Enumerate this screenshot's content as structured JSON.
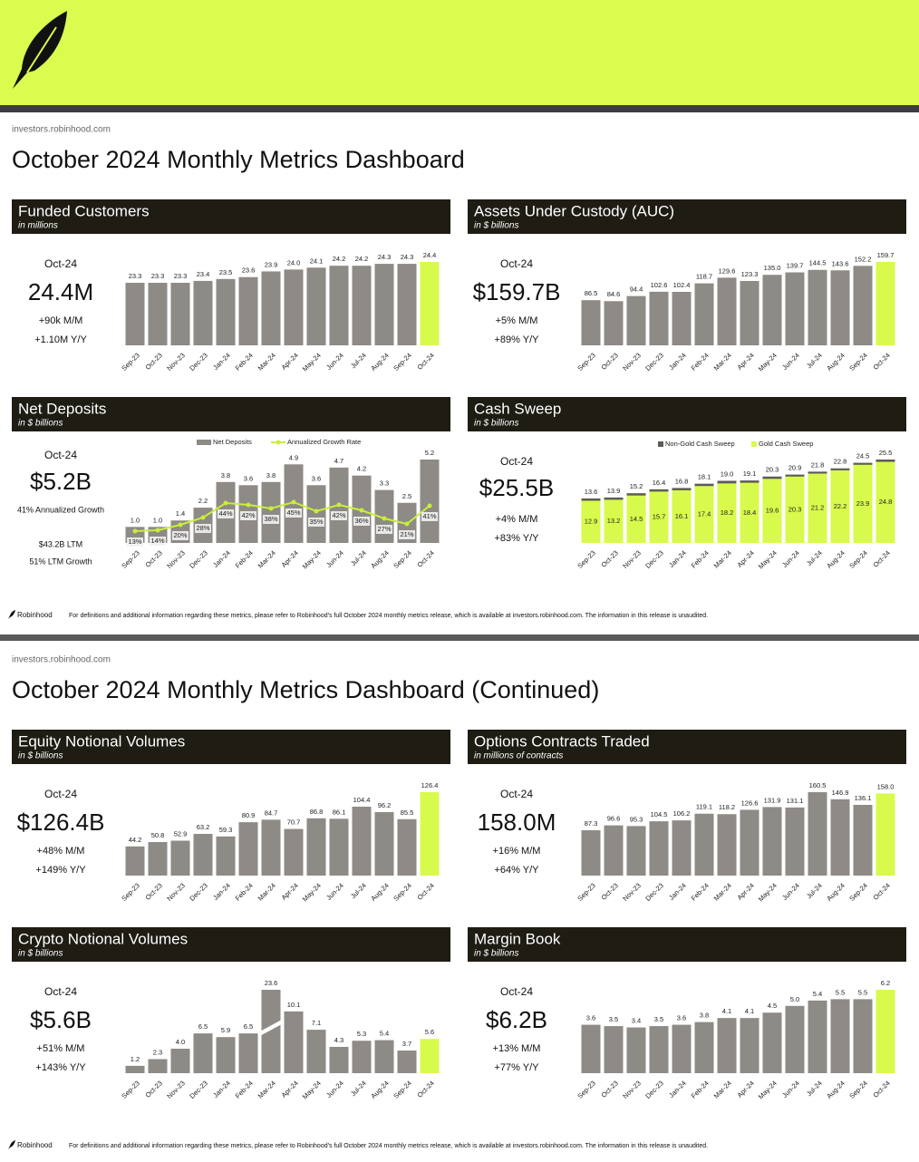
{
  "pages": [
    {
      "site": "investors.robinhood.com",
      "title": "October 2024 Monthly Metrics Dashboard",
      "footer_brand": "Robinhood",
      "footer_note": "For definitions and additional information regarding these metrics, please refer to Robinhood's full October 2024 monthly metrics release, which is available at investors.robinhood.com. The information in this release is unaudited."
    },
    {
      "site": "investors.robinhood.com",
      "title": "October 2024 Monthly Metrics Dashboard (Continued)",
      "footer_brand": "Robinhood",
      "footer_note": "For definitions and additional information regarding these metrics, please refer to Robinhood's full October 2024 monthly metrics release, which is available at investors.robinhood.com. The information in this release is unaudited."
    }
  ],
  "chart_data": [
    {
      "type": "bar",
      "title": "Funded Customers",
      "subtitle": "in millions",
      "categories": [
        "Sep-23",
        "Oct-23",
        "Nov-23",
        "Dec-23",
        "Jan-24",
        "Feb-24",
        "Mar-24",
        "Apr-24",
        "May-24",
        "Jun-24",
        "Jul-24",
        "Aug-24",
        "Sep-24",
        "Oct-24"
      ],
      "values": [
        23.3,
        23.3,
        23.3,
        23.4,
        23.5,
        23.6,
        23.9,
        24.0,
        24.1,
        24.2,
        24.2,
        24.3,
        24.3,
        24.4
      ],
      "value_labels": [
        "23.3",
        "23.3",
        "23.3",
        "23.4",
        "23.5",
        "23.6",
        "23.9",
        "24.0",
        "24.1",
        "24.2",
        "24.2",
        "24.3",
        "24.3",
        "24.4"
      ],
      "color": "#8e8a86",
      "highlight": "Oct-24",
      "highlight_color": "#d8fa4c",
      "kpi": {
        "period": "Oct-24",
        "value": "24.4M",
        "notes": [
          "+90k M/M",
          "+1.10M Y/Y"
        ]
      }
    },
    {
      "type": "bar",
      "title": "Assets Under Custody (AUC)",
      "subtitle": "in $ billions",
      "categories": [
        "Sep-23",
        "Oct-23",
        "Nov-23",
        "Dec-23",
        "Jan-24",
        "Feb-24",
        "Mar-24",
        "Apr-24",
        "May-24",
        "Jun-24",
        "Jul-24",
        "Aug-24",
        "Sep-24",
        "Oct-24"
      ],
      "values": [
        86.5,
        84.6,
        94.4,
        102.6,
        102.4,
        118.7,
        129.6,
        123.3,
        135.0,
        139.7,
        144.5,
        143.6,
        152.2,
        159.7
      ],
      "value_labels": [
        "86.5",
        "84.6",
        "94.4",
        "102.6",
        "102.4",
        "118.7",
        "129.6",
        "123.3",
        "135.0",
        "139.7",
        "144.5",
        "143.6",
        "152.2",
        "159.7"
      ],
      "color": "#8e8a86",
      "highlight": "Oct-24",
      "highlight_color": "#d8fa4c",
      "kpi": {
        "period": "Oct-24",
        "value": "$159.7B",
        "notes": [
          "+5% M/M",
          "+89% Y/Y"
        ]
      }
    },
    {
      "type": "bar_line",
      "title": "Net Deposits",
      "subtitle": "in $ billions",
      "categories": [
        "Sep-23",
        "Oct-23",
        "Nov-23",
        "Dec-23",
        "Jan-24",
        "Feb-24",
        "Mar-24",
        "Apr-24",
        "May-24",
        "Jun-24",
        "Jul-24",
        "Aug-24",
        "Sep-24",
        "Oct-24"
      ],
      "series": [
        {
          "name": "Net Deposits",
          "color": "#8e8a86",
          "values": [
            1.0,
            1.0,
            1.4,
            2.2,
            3.8,
            3.6,
            3.8,
            4.9,
            3.6,
            4.7,
            4.2,
            3.3,
            2.5,
            5.2
          ],
          "value_labels": [
            "1.0",
            "1.0",
            "1.4",
            "2.2",
            "3.8",
            "3.6",
            "3.8",
            "4.9",
            "3.6",
            "4.7",
            "4.2",
            "3.3",
            "2.5",
            "5.2"
          ]
        },
        {
          "name": "Annualized Growth Rate",
          "color": "#c9ee3a",
          "axis": "y2",
          "values": [
            13,
            14,
            20,
            28,
            44,
            42,
            38,
            45,
            35,
            42,
            36,
            27,
            21,
            41
          ],
          "value_labels": [
            "13%",
            "14%",
            "20%",
            "28%",
            "44%",
            "42%",
            "38%",
            "45%",
            "35%",
            "42%",
            "36%",
            "27%",
            "21%",
            "41%"
          ]
        }
      ],
      "kpi": {
        "period": "Oct-24",
        "value": "$5.2B",
        "notes": [
          "41% Annualized Growth",
          "$43.2B LTM",
          "51% LTM Growth"
        ]
      }
    },
    {
      "type": "overlap_bar",
      "title": "Cash Sweep",
      "subtitle": "in $ billions",
      "categories": [
        "Sep-23",
        "Oct-23",
        "Nov-23",
        "Dec-23",
        "Jan-24",
        "Feb-24",
        "Mar-24",
        "Apr-24",
        "May-24",
        "Jun-24",
        "Jul-24",
        "Aug-24",
        "Sep-24",
        "Oct-24"
      ],
      "series": [
        {
          "name": "Non-Gold Cash Sweep",
          "color": "#5e5b57"
        },
        {
          "name": "Gold Cash Sweep",
          "color": "#d8fa4c",
          "values": [
            12.9,
            13.2,
            14.5,
            15.7,
            16.1,
            17.4,
            18.2,
            18.4,
            19.6,
            20.3,
            21.2,
            22.2,
            23.9,
            24.8
          ],
          "value_labels": [
            "12.9",
            "13.2",
            "14.5",
            "15.7",
            "16.1",
            "17.4",
            "18.2",
            "18.4",
            "19.6",
            "20.3",
            "21.2",
            "22.2",
            "23.9",
            "24.8"
          ]
        }
      ],
      "totals": [
        13.6,
        13.9,
        15.2,
        16.4,
        16.8,
        18.1,
        19.0,
        19.1,
        20.3,
        20.9,
        21.8,
        22.8,
        24.5,
        25.5
      ],
      "total_labels": [
        "13.6",
        "13.9",
        "15.2",
        "16.4",
        "16.8",
        "18.1",
        "19.0",
        "19.1",
        "20.3",
        "20.9",
        "21.8",
        "22.8",
        "24.5",
        "25.5"
      ],
      "kpi": {
        "period": "Oct-24",
        "value": "$25.5B",
        "notes": [
          "+4% M/M",
          "+83% Y/Y"
        ]
      }
    },
    {
      "type": "bar",
      "title": "Equity Notional Volumes",
      "subtitle": "in $ billions",
      "categories": [
        "Sep-23",
        "Oct-23",
        "Nov-23",
        "Dec-23",
        "Jan-24",
        "Feb-24",
        "Mar-24",
        "Apr-24",
        "May-24",
        "Jun-24",
        "Jul-24",
        "Aug-24",
        "Sep-24",
        "Oct-24"
      ],
      "values": [
        44.2,
        50.8,
        52.9,
        63.2,
        59.3,
        80.9,
        84.7,
        70.7,
        86.8,
        86.1,
        104.4,
        96.2,
        85.5,
        126.4
      ],
      "value_labels": [
        "44.2",
        "50.8",
        "52.9",
        "63.2",
        "59.3",
        "80.9",
        "84.7",
        "70.7",
        "86.8",
        "86.1",
        "104.4",
        "96.2",
        "85.5",
        "126.4"
      ],
      "color": "#8e8a86",
      "highlight": "Oct-24",
      "highlight_color": "#d8fa4c",
      "kpi": {
        "period": "Oct-24",
        "value": "$126.4B",
        "notes": [
          "+48% M/M",
          "+149% Y/Y"
        ]
      }
    },
    {
      "type": "bar",
      "title": "Options Contracts Traded",
      "subtitle": "in millions of contracts",
      "categories": [
        "Sep-23",
        "Oct-23",
        "Nov-23",
        "Dec-23",
        "Jan-24",
        "Feb-24",
        "Mar-24",
        "Apr-24",
        "May-24",
        "Jun-24",
        "Jul-24",
        "Aug-24",
        "Sep-24",
        "Oct-24"
      ],
      "values": [
        87.3,
        96.6,
        95.3,
        104.5,
        106.2,
        119.1,
        118.2,
        126.6,
        131.9,
        131.1,
        160.5,
        146.9,
        136.1,
        158.0
      ],
      "value_labels": [
        "87.3",
        "96.6",
        "95.3",
        "104.5",
        "106.2",
        "119.1",
        "118.2",
        "126.6",
        "131.9",
        "131.1",
        "160.5",
        "146.9",
        "136.1",
        "158.0"
      ],
      "color": "#8e8a86",
      "highlight": "Oct-24",
      "highlight_color": "#d8fa4c",
      "kpi": {
        "period": "Oct-24",
        "value": "158.0M",
        "notes": [
          "+16% M/M",
          "+64% Y/Y"
        ]
      }
    },
    {
      "type": "bar",
      "title": "Crypto Notional Volumes",
      "subtitle": "in $ billions",
      "categories": [
        "Sep-23",
        "Oct-23",
        "Nov-23",
        "Dec-23",
        "Jan-24",
        "Feb-24",
        "Mar-24",
        "Apr-24",
        "May-24",
        "Jun-24",
        "Jul-24",
        "Aug-24",
        "Sep-24",
        "Oct-24"
      ],
      "values": [
        1.2,
        2.3,
        4.0,
        6.5,
        5.9,
        6.5,
        23.6,
        10.1,
        7.1,
        4.3,
        5.3,
        5.4,
        3.7,
        5.6
      ],
      "value_labels": [
        "1.2",
        "2.3",
        "4.0",
        "6.5",
        "5.9",
        "6.5",
        "23.6",
        "10.1",
        "7.1",
        "4.3",
        "5.3",
        "5.4",
        "3.7",
        "5.6"
      ],
      "color": "#8e8a86",
      "highlight": "Oct-24",
      "highlight_color": "#d8fa4c",
      "axis_break": true,
      "kpi": {
        "period": "Oct-24",
        "value": "$5.6B",
        "notes": [
          "+51% M/M",
          "+143% Y/Y"
        ]
      }
    },
    {
      "type": "bar",
      "title": "Margin Book",
      "subtitle": "in $ billions",
      "categories": [
        "Sep-23",
        "Oct-23",
        "Nov-23",
        "Dec-23",
        "Jan-24",
        "Feb-24",
        "Mar-24",
        "Apr-24",
        "May-24",
        "Jun-24",
        "Jul-24",
        "Aug-24",
        "Sep-24",
        "Oct-24"
      ],
      "values": [
        3.6,
        3.5,
        3.4,
        3.5,
        3.6,
        3.8,
        4.1,
        4.1,
        4.5,
        5.0,
        5.4,
        5.5,
        5.5,
        6.2
      ],
      "value_labels": [
        "3.6",
        "3.5",
        "3.4",
        "3.5",
        "3.6",
        "3.8",
        "4.1",
        "4.1",
        "4.5",
        "5.0",
        "5.4",
        "5.5",
        "5.5",
        "6.2"
      ],
      "color": "#8e8a86",
      "highlight": "Oct-24",
      "highlight_color": "#d8fa4c",
      "kpi": {
        "period": "Oct-24",
        "value": "$6.2B",
        "notes": [
          "+13% M/M",
          "+77% Y/Y"
        ]
      }
    }
  ]
}
